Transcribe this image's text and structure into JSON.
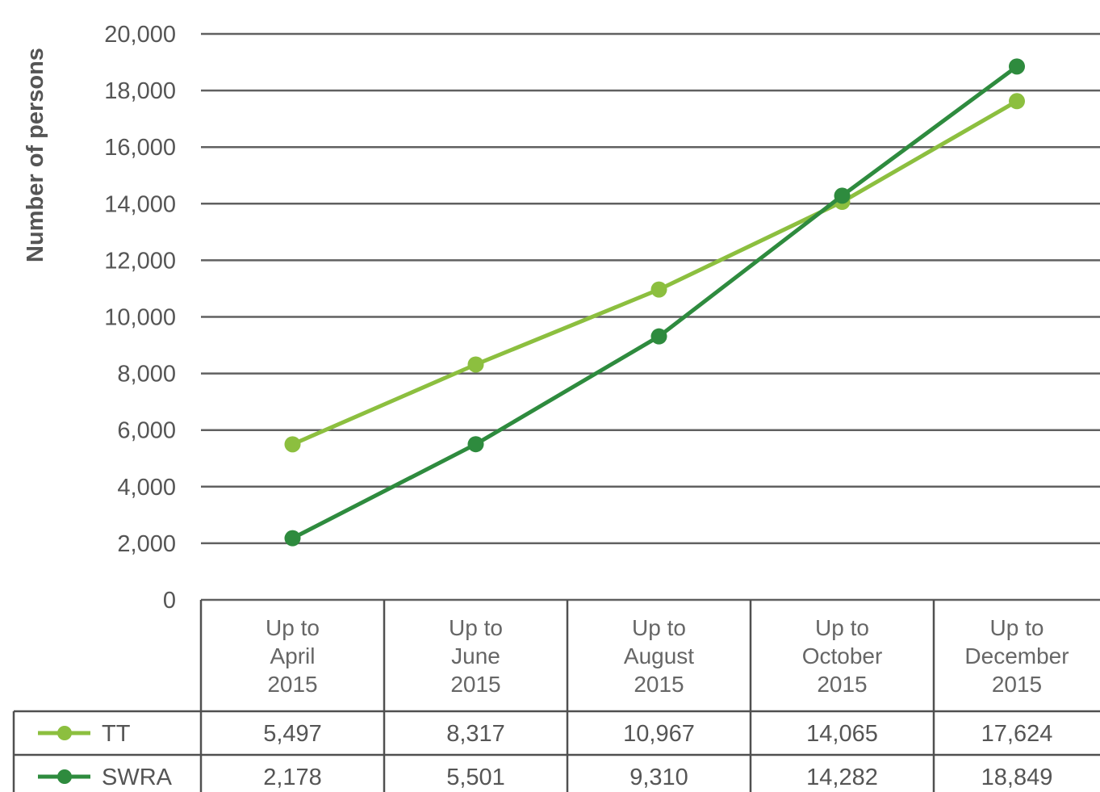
{
  "colors": {
    "TT": "#8cbf3f",
    "SWRA": "#2e8b3e",
    "grid": "#606060",
    "text": "#555555"
  },
  "chart_data": {
    "type": "line",
    "ylabel": "Number of persons",
    "ylim": [
      0,
      20000
    ],
    "yticks": [
      0,
      2000,
      4000,
      6000,
      8000,
      10000,
      12000,
      14000,
      16000,
      18000,
      20000
    ],
    "ytick_labels": [
      "0",
      "2,000",
      "4,000",
      "6,000",
      "8,000",
      "10,000",
      "12,000",
      "14,000",
      "16,000",
      "18,000",
      "20,000"
    ],
    "grid": true,
    "legend": "data-table",
    "categories": [
      [
        "Up to",
        "April",
        "2015"
      ],
      [
        "Up to",
        "June",
        "2015"
      ],
      [
        "Up to",
        "August",
        "2015"
      ],
      [
        "Up to",
        "October",
        "2015"
      ],
      [
        "Up to",
        "December",
        "2015"
      ]
    ],
    "series": [
      {
        "name": "TT",
        "values": [
          5497,
          8317,
          10967,
          14065,
          17624
        ],
        "labels": [
          "5,497",
          "8,317",
          "10,967",
          "14,065",
          "17,624"
        ]
      },
      {
        "name": "SWRA",
        "values": [
          2178,
          5501,
          9310,
          14282,
          18849
        ],
        "labels": [
          "2,178",
          "5,501",
          "9,310",
          "14,282",
          "18,849"
        ]
      }
    ]
  }
}
